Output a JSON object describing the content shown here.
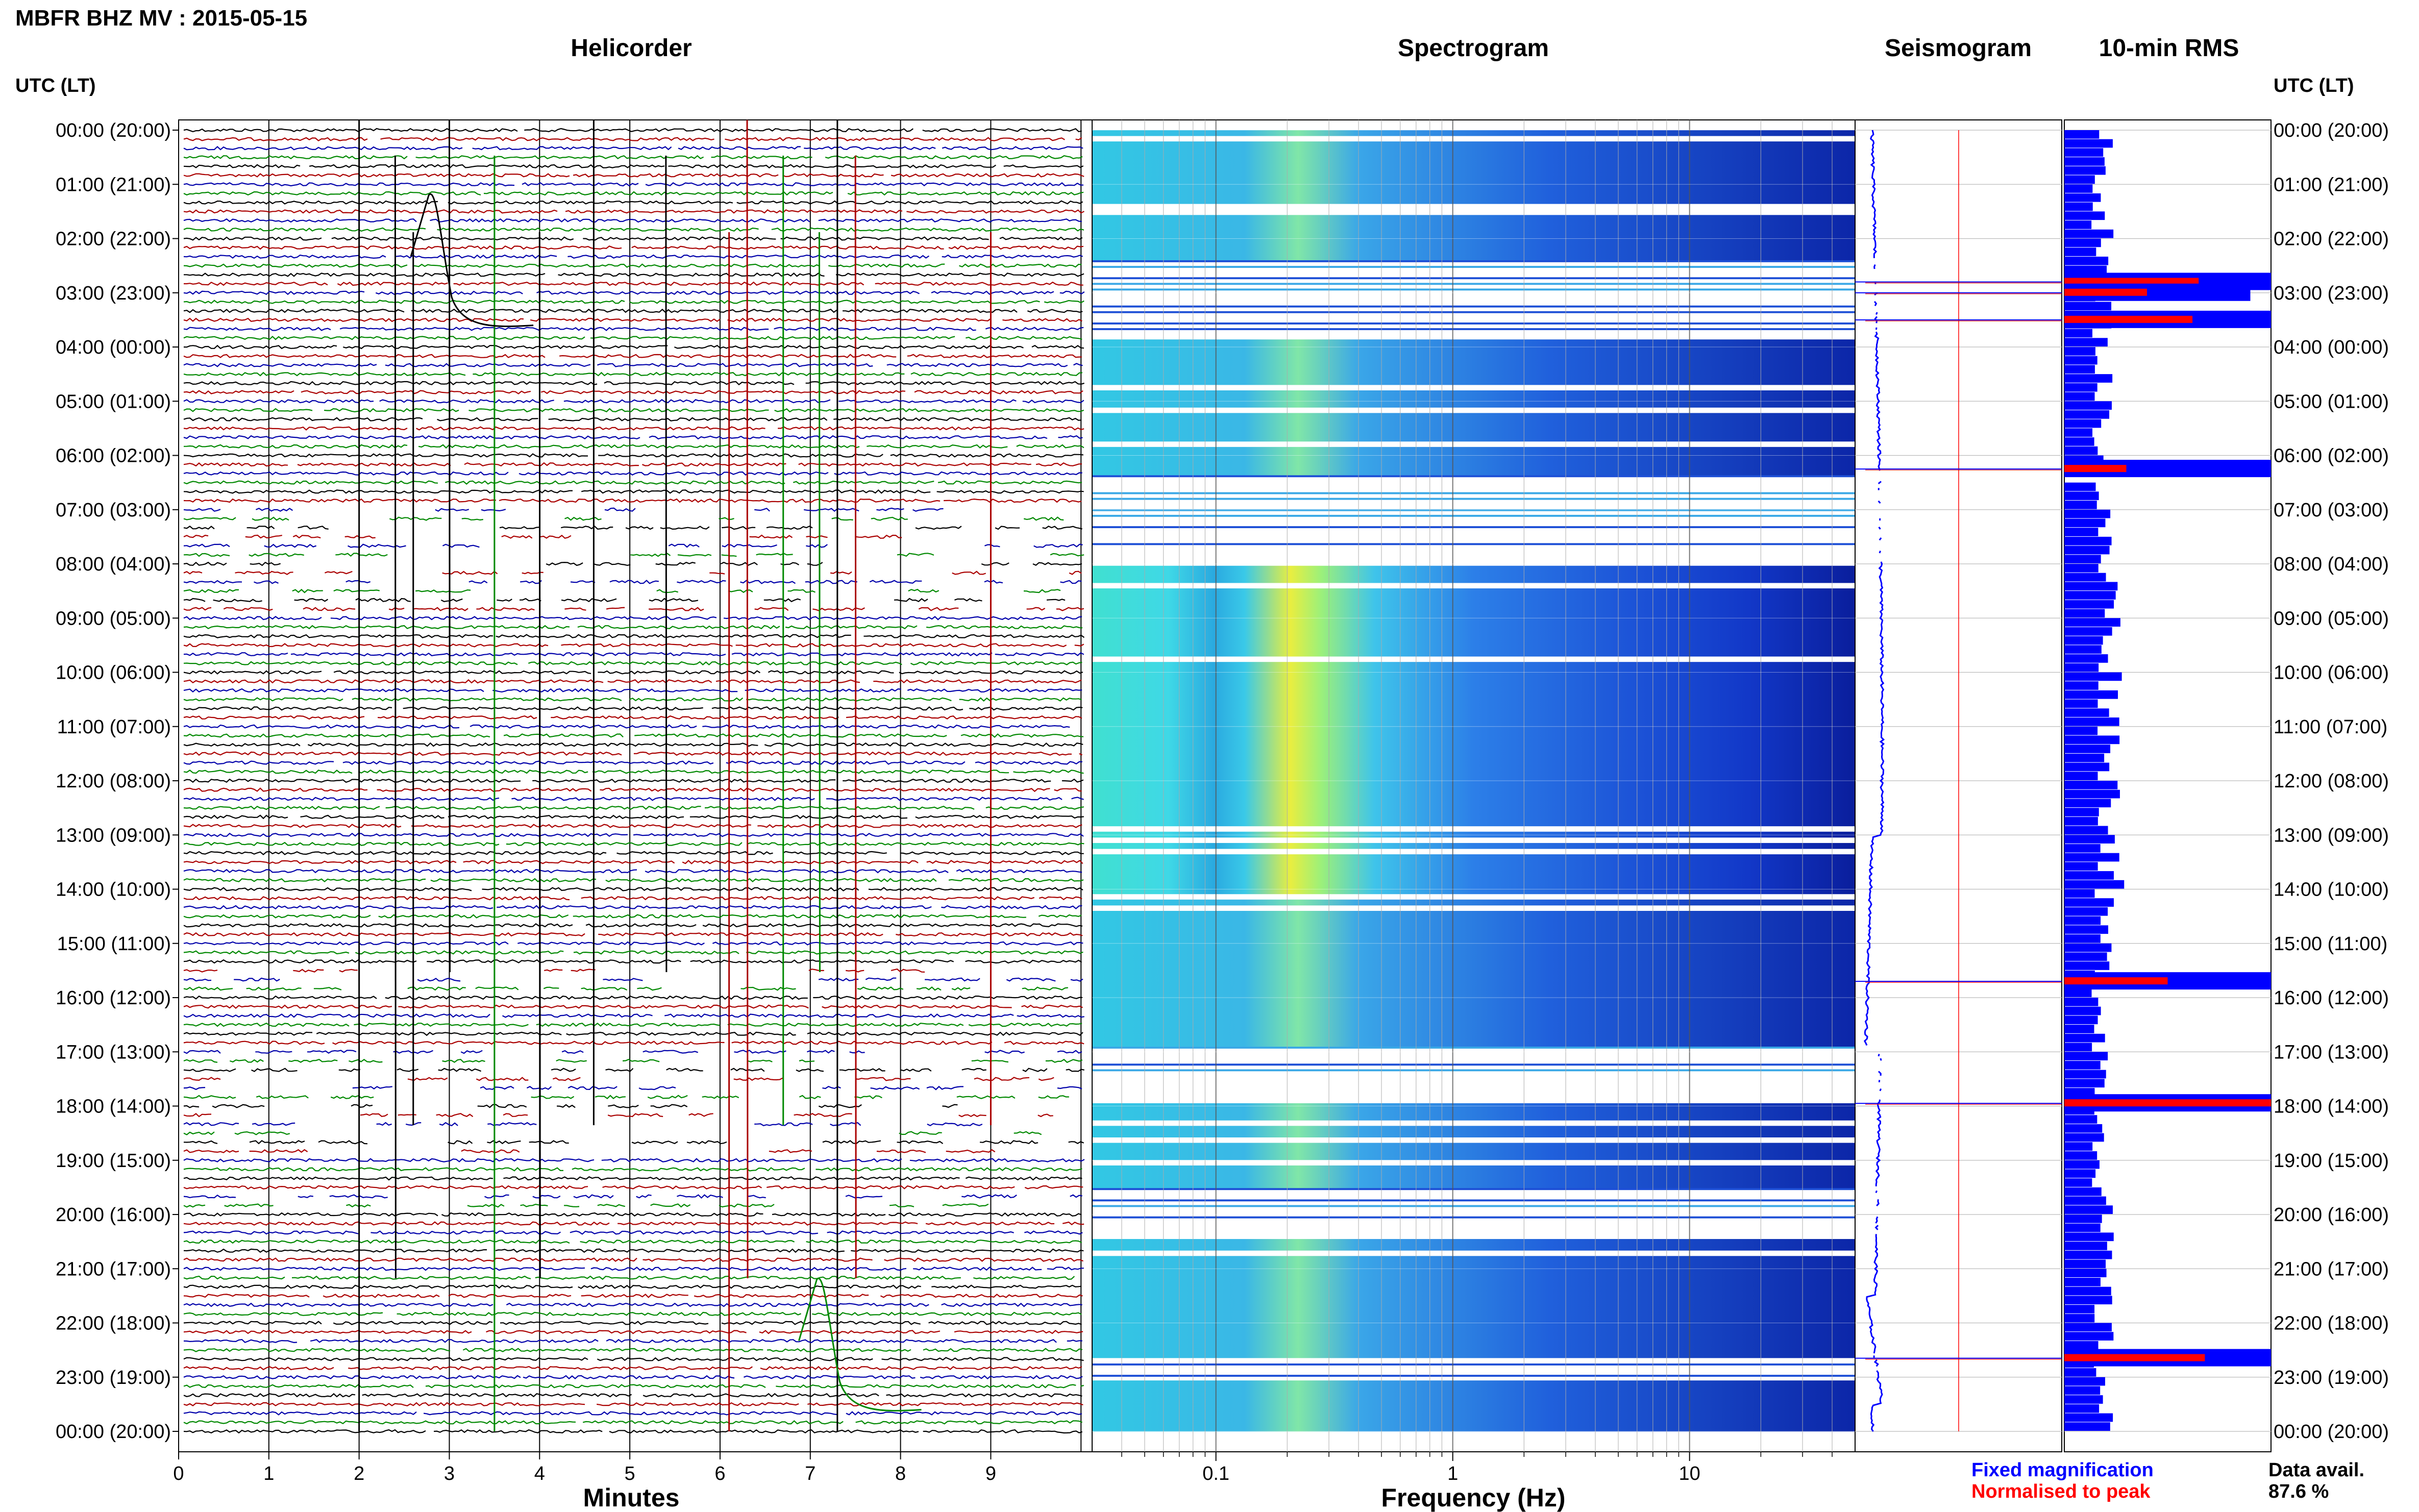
{
  "header": {
    "title": "MBFR BHZ MV : 2015-05-15"
  },
  "panels": {
    "helicorder_title": "Helicorder",
    "spectrogram_title": "Spectrogram",
    "seismogram_title": "Seismogram",
    "rms_title": "10-min RMS"
  },
  "time_axis": {
    "left_header": "UTC (LT)",
    "right_header": "UTC (LT)",
    "labels": [
      "00:00 (20:00)",
      "01:00 (21:00)",
      "02:00 (22:00)",
      "03:00 (23:00)",
      "04:00 (00:00)",
      "05:00 (01:00)",
      "06:00 (02:00)",
      "07:00 (03:00)",
      "08:00 (04:00)",
      "09:00 (05:00)",
      "10:00 (06:00)",
      "11:00 (07:00)",
      "12:00 (08:00)",
      "13:00 (09:00)",
      "14:00 (10:00)",
      "15:00 (11:00)",
      "16:00 (12:00)",
      "17:00 (13:00)",
      "18:00 (14:00)",
      "19:00 (15:00)",
      "20:00 (16:00)",
      "21:00 (17:00)",
      "22:00 (18:00)",
      "23:00 (19:00)",
      "00:00 (20:00)"
    ]
  },
  "legend": {
    "fixed": "Fixed magnification",
    "normalised": "Normalised to peak",
    "data_avail_label": "Data avail.",
    "data_avail_value": "87.6 %"
  },
  "colors": {
    "trace_cycle": [
      "#000000",
      "#aa0000",
      "#0000aa",
      "#008800"
    ],
    "fixed_blue": "#0000ff",
    "normalised_red": "#ff0000"
  },
  "chart_data": [
    {
      "type": "line",
      "name": "helicorder",
      "title": "Helicorder",
      "xlabel": "Minutes",
      "x_ticks": [
        "0",
        "1",
        "2",
        "3",
        "4",
        "5",
        "6",
        "7",
        "8",
        "9"
      ],
      "xlim": [
        0,
        10
      ],
      "rows_per_hour": 6,
      "hours": 24,
      "gap_hours": [
        7,
        8,
        17,
        18
      ],
      "spikes_minutes": [
        2.0,
        2.4,
        2.6,
        3.0,
        3.5,
        4.0,
        4.6,
        5.4,
        6.1,
        6.3,
        6.7,
        7.1,
        7.3,
        7.5,
        9.0
      ],
      "large_transients": [
        {
          "hour": 1.2,
          "minute": 2.8
        },
        {
          "hour": 21.2,
          "minute": 7.1
        }
      ]
    },
    {
      "type": "heatmap",
      "name": "spectrogram",
      "title": "Spectrogram",
      "xlabel": "Frequency (Hz)",
      "x_scale": "log",
      "x_ticks": [
        "0.1",
        "1",
        "10"
      ],
      "xlim": [
        0.03,
        50
      ],
      "colormap": "jet",
      "peak_band_hz": [
        0.2,
        0.3
      ],
      "data_gaps_hours": [
        [
          2.4,
          3.8
        ],
        [
          6.3,
          8.0
        ],
        [
          16.8,
          17.9
        ],
        [
          19.5,
          20.4
        ],
        [
          22.6,
          23.0
        ]
      ]
    },
    {
      "type": "line",
      "name": "seismogram",
      "title": "Seismogram",
      "series": [
        {
          "name": "Fixed magnification",
          "color": "#0000ff"
        },
        {
          "name": "Normalised to peak",
          "color": "#ff0000"
        }
      ]
    },
    {
      "type": "bar",
      "name": "10-min RMS",
      "title": "10-min RMS",
      "orientation": "horizontal",
      "series": [
        {
          "name": "Fixed magnification",
          "color": "#0000ff"
        },
        {
          "name": "Normalised to peak",
          "color": "#ff0000"
        }
      ],
      "peaks": [
        {
          "hour": 2.8,
          "fixed": 1.0,
          "normalised": 0.65
        },
        {
          "hour": 3.0,
          "fixed": 0.9,
          "normalised": 0.4
        },
        {
          "hour": 3.5,
          "fixed": 1.0,
          "normalised": 0.62
        },
        {
          "hour": 6.25,
          "fixed": 1.0,
          "normalised": 0.3
        },
        {
          "hour": 15.7,
          "fixed": 1.0,
          "normalised": 0.5
        },
        {
          "hour": 17.95,
          "fixed": 1.0,
          "normalised": 1.0
        },
        {
          "hour": 22.65,
          "fixed": 1.0,
          "normalised": 0.68
        }
      ],
      "baseline_fraction": 0.23
    }
  ]
}
